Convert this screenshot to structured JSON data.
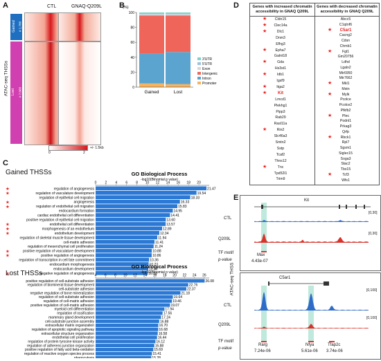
{
  "panels": {
    "A": "A",
    "B": "B",
    "C": "C",
    "D": "D",
    "E": "E"
  },
  "panelA": {
    "col_labels": [
      "CTL",
      "GNAQ-Q209L"
    ],
    "row_labels": [
      "Gained",
      "Lost"
    ],
    "row_counts": [
      "# 1,788",
      "# 7,068"
    ],
    "side_label": "ATAC-seq THSSs",
    "scale_min": "0",
    "scale_max": "2",
    "window": "+/- 1.5kb",
    "colors": {
      "high": "#d7181c",
      "low": "#ffffff",
      "gained_bar": "#1f6fc1",
      "lost_bar": "#d140b0"
    }
  },
  "chart_data": [
    {
      "type": "bar",
      "panel": "B",
      "stacked": true,
      "categories": [
        "Gained",
        "Lost"
      ],
      "ylabel": "(%)",
      "ylim": [
        0,
        100
      ],
      "yticks": [
        "0",
        "20",
        "40",
        "60",
        "80",
        "100"
      ],
      "legend": [
        "3'UTR",
        "5'UTR",
        "Exon",
        "Intergenic",
        "Intron",
        "Promoter"
      ],
      "series": [
        {
          "name": "Promoter",
          "color": "#f7b35e",
          "values": [
            5,
            4
          ]
        },
        {
          "name": "Intron",
          "color": "#5ba4cf",
          "values": [
            40,
            43
          ]
        },
        {
          "name": "Intergenic",
          "color": "#f0655a",
          "values": [
            51,
            49
          ]
        },
        {
          "name": "Exon",
          "color": "#d6d6d6",
          "values": [
            1.5,
            1.5
          ]
        },
        {
          "name": "5'UTR",
          "color": "#9ec1e3",
          "values": [
            0.5,
            0.5
          ]
        },
        {
          "name": "3'UTR",
          "color": "#7fd3c7",
          "values": [
            2,
            2
          ]
        }
      ]
    },
    {
      "type": "bar",
      "panel": "C-gained",
      "orientation": "horizontal",
      "title": "GO Biological Process",
      "xlabel": "-log10(Binomial p value)",
      "xlim": [
        0,
        22
      ],
      "xticks": [
        0,
        2,
        4,
        6,
        8,
        10,
        12,
        14,
        16,
        18,
        20
      ],
      "color": "#2b79d4",
      "categories": [
        "regulation of angiogenesis",
        "regulation of vasculature development",
        "regulation of epithelial cell migration",
        "angiogenesis",
        "regulation of endothelial cell migration",
        "endocardium formation",
        "cardiac endothelial cell differentiation",
        "positive regulation of epithelial cell migration",
        "endothelial cell differentiation",
        "morphogenesis of an endothelium",
        "endothelium development",
        "regulation of skeletal muscle tissue development",
        "cell-matrix adhesion",
        "regulation of mesenchymal cell proliferation",
        "positive regulation of vasculature development",
        "positive regulation of angiogenesis",
        "regulation of transcription in cell fate commitment",
        "endocardium morphogenesis",
        "endocardium development",
        "negative regulation of angiogenesis"
      ],
      "values": [
        21.47,
        19.54,
        18.33,
        16.33,
        15.83,
        14.95,
        14.41,
        13.6,
        13.57,
        12.89,
        12.34,
        11.94,
        11.41,
        11.24,
        10.88,
        10.86,
        10.36,
        10.27,
        10.2,
        10.1
      ],
      "value_labels": [
        "21.47",
        "19.54",
        "18.33",
        "16.33",
        "15.83",
        "14.95",
        "14.41",
        "13.60",
        "13.57",
        "12.89",
        "12.34",
        "11.94",
        "11.41",
        "11.24",
        "10.88",
        "10.86",
        "10.36",
        "10.27",
        "10.20",
        "10.10"
      ],
      "starred": [
        true,
        true,
        false,
        true,
        true,
        false,
        false,
        false,
        true,
        true,
        true,
        false,
        false,
        false,
        true,
        true,
        false,
        false,
        false,
        true
      ]
    },
    {
      "type": "bar",
      "panel": "C-lost",
      "orientation": "horizontal",
      "title": "GO Biological Process",
      "xlabel": "-log10(Binomial p value)",
      "xlim": [
        4,
        27
      ],
      "xticks": [
        4,
        6,
        8,
        10,
        12,
        14,
        16,
        18,
        20,
        22,
        24,
        26
      ],
      "color": "#2b79d4",
      "categories": [
        "positive regulation of cell-substrate adhesion",
        "regulation of biomineral tissue development",
        "cell-substrate adhesion",
        "negative regulation of bone mineralization",
        "regulation of cell-substrate adhesion",
        "regulation of cell-matrix adhesion",
        "positive regulation of cell-matrix adhesion",
        "myeloid cell differentiation",
        "regulation of ossification",
        "mammary gland development",
        "cell-substrate junction assembly",
        "extracellular matrix organization",
        "regulation of apoptotic signaling pathway",
        "extracellular structure organization",
        "endothelial cell proliferation",
        "regulation of protein tyrosine kinase activity",
        "regulation of adherens junction organization",
        "positive regulation of fatty acid beta-oxidation",
        "regulation of reactive oxygen species process",
        "phagocytosis",
        "cell junction organization"
      ],
      "values": [
        26.08,
        22.76,
        22.37,
        21.18,
        19.64,
        19.46,
        19.07,
        17.94,
        17.56,
        17.24,
        16.88,
        16.7,
        16.68,
        16.58,
        16.44,
        16.12,
        15.88,
        15.69,
        15.41,
        15.28,
        15.09
      ],
      "value_labels": [
        "26.08",
        "22.76",
        "22.37",
        "21.18",
        "19.64",
        "19.46",
        "19.07",
        "17.94",
        "17.56",
        "17.24",
        "16.88",
        "16.70",
        "16.68",
        "16.58",
        "16.44",
        "16.12",
        "15.88",
        "15.69",
        "15.41",
        "15.28",
        "15.09"
      ]
    }
  ],
  "panelC": {
    "gained_title": "Gained THSSs",
    "lost_title": "Lost THSSs"
  },
  "panelD": {
    "header_left": "Genes with increased chromatin accessibility in GNAQ Q209L",
    "header_right": "Genes with decreased chromatin accessibility in GNAQ Q209L",
    "left": [
      {
        "g": "Cldn15",
        "s": true
      },
      {
        "g": "Clec14a",
        "s": true
      },
      {
        "g": "Dlc1",
        "s": true
      },
      {
        "g": "Dnm3",
        "s": false
      },
      {
        "g": "Efhg3",
        "s": false
      },
      {
        "g": "Epha7",
        "s": true
      },
      {
        "g": "Galnt18",
        "s": false
      },
      {
        "g": "Gda",
        "s": true
      },
      {
        "g": "Hs3st1",
        "s": false
      },
      {
        "g": "Idb1",
        "s": true
      },
      {
        "g": "Igsf9",
        "s": false
      },
      {
        "g": "Itga2",
        "s": true
      },
      {
        "g": "Kit",
        "s": true,
        "hl": true
      },
      {
        "g": "Lmcd1",
        "s": false
      },
      {
        "g": "Plekhg1",
        "s": false
      },
      {
        "g": "Pipp3",
        "s": false
      },
      {
        "g": "Rab29",
        "s": false
      },
      {
        "g": "Rasl11a",
        "s": false
      },
      {
        "g": "Rin2",
        "s": true
      },
      {
        "g": "Slc46a3",
        "s": false
      },
      {
        "g": "Smtn2",
        "s": false
      },
      {
        "g": "Sstp",
        "s": false
      },
      {
        "g": "Tcaf2",
        "s": false
      },
      {
        "g": "Thns12",
        "s": false
      },
      {
        "g": "Tnc",
        "s": true
      },
      {
        "g": "Tpd52l1",
        "s": false
      },
      {
        "g": "Trim9",
        "s": false
      }
    ],
    "right": [
      {
        "g": "Abcc5",
        "s": false
      },
      {
        "g": "C1qtnf6",
        "s": false
      },
      {
        "g": "C5ar1",
        "s": true,
        "hl": true
      },
      {
        "g": "Cacng2",
        "s": false
      },
      {
        "g": "Cdsn",
        "s": false
      },
      {
        "g": "Chmb1",
        "s": false
      },
      {
        "g": "Fgl1",
        "s": true
      },
      {
        "g": "Gm20756",
        "s": false
      },
      {
        "g": "Ldhd",
        "s": false
      },
      {
        "g": "Lgalx2",
        "s": false
      },
      {
        "g": "Mir6950",
        "s": false
      },
      {
        "g": "Mir7662",
        "s": false
      },
      {
        "g": "Mkl1",
        "s": true
      },
      {
        "g": "Mstn",
        "s": false
      },
      {
        "g": "Mylk",
        "s": true
      },
      {
        "g": "Pcolce",
        "s": false
      },
      {
        "g": "Pcolce2",
        "s": false
      },
      {
        "g": "Pfkfb2",
        "s": false
      },
      {
        "g": "Plec",
        "s": true
      },
      {
        "g": "Podnl1",
        "s": false
      },
      {
        "g": "Prkag3",
        "s": false
      },
      {
        "g": "Qrfp",
        "s": false
      },
      {
        "g": "Rbck1",
        "s": true
      },
      {
        "g": "Rpl7",
        "s": false
      },
      {
        "g": "Sgsm1",
        "s": false
      },
      {
        "g": "Siglec15",
        "s": false
      },
      {
        "g": "Soga3",
        "s": false
      },
      {
        "g": "Stac2",
        "s": false
      },
      {
        "g": "Tbx15",
        "s": false
      },
      {
        "g": "Tcf3",
        "s": true
      },
      {
        "g": "Wfs1",
        "s": false
      }
    ]
  },
  "panelE": {
    "side_label": "ATAC-seq THSS",
    "track_colors": {
      "ctl": "#2f6cc9",
      "q209l": "#d9332b",
      "highlight": "#bfe9dc"
    },
    "kit": {
      "gene": "Kit",
      "ctl": "CTL",
      "q209l": "Q209L",
      "range": "[0,30]",
      "tf_label": "TF motif",
      "p_label": "p-value",
      "motif": "Max",
      "pval": "4.43e-07"
    },
    "c5ar1": {
      "gene": "C5ar1",
      "ctl": "CTL",
      "q209l": "Q209L",
      "range": "[0,100]",
      "tf_label": "TF motif",
      "p_label": "p-value",
      "motifs": [
        {
          "name": "Rarg",
          "pval": "7.24e-06"
        },
        {
          "name": "Nfya",
          "pval": "5.61e-06"
        },
        {
          "name": "Tfap2c",
          "pval": "3.74e-06"
        }
      ]
    }
  }
}
